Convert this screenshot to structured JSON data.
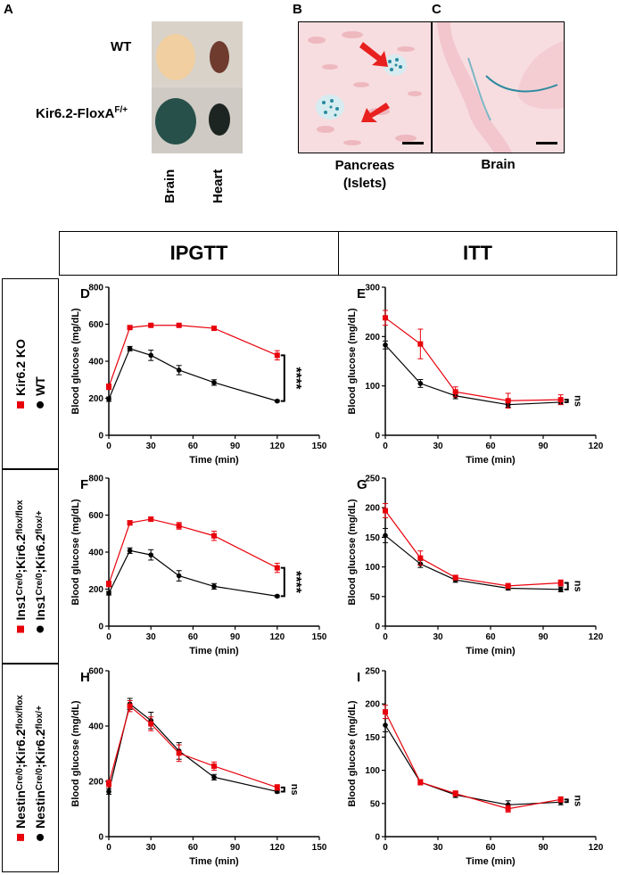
{
  "figure": {
    "panel_letters": {
      "A": "A",
      "B": "B",
      "C": "C"
    },
    "photo_labels": {
      "wt": "WT",
      "mutant_base": "Kir6.2-FloxA",
      "mutant_sup": "F/+",
      "brain": "Brain",
      "heart": "Heart"
    },
    "micro_labels": {
      "pancreas_line1": "Pancreas",
      "pancreas_line2": "(Islets)",
      "brain": "Brain"
    },
    "column_headers": {
      "ipgtt": "IPGTT",
      "itt": "ITT"
    },
    "legends": [
      {
        "black": "WT",
        "red": "Kir6.2 KO"
      },
      {
        "black_base": "Ins1",
        "black_s1": "Cre/0",
        "black_mid": ";Kir6.2",
        "black_s2": "flox/+",
        "red_base": "Ins1",
        "red_s1": "Cre/0",
        "red_mid": ";Kir6.2",
        "red_s2": "flox/flox"
      },
      {
        "black_base": "Nestin",
        "black_s1": "Cre/0",
        "black_mid": ";Kir6.2",
        "black_s2": "flox/+",
        "red_base": "Nestin",
        "red_s1": "Cre/0",
        "red_mid": ";Kir6.2",
        "red_s2": "flox/flox"
      }
    ],
    "colors": {
      "control": "#000000",
      "ko": "#e8000b",
      "tissue_bg": "#f6d9dd",
      "stain": "#2b8a9e",
      "arrow": "#e8201e"
    }
  },
  "chart_data": [
    {
      "id": "D",
      "type": "line",
      "xlabel": "Time (min)",
      "ylabel": "Blood glucose (mg/dL)",
      "xlim": [
        0,
        150
      ],
      "xticks": [
        0,
        30,
        60,
        90,
        120,
        150
      ],
      "ylim": [
        0,
        800
      ],
      "yticks": [
        0,
        200,
        400,
        600,
        800
      ],
      "x": [
        0,
        15,
        30,
        50,
        75,
        120
      ],
      "series": [
        {
          "name": "control",
          "color": "#000000",
          "marker": "circle",
          "values": [
            195,
            468,
            432,
            352,
            285,
            185
          ],
          "errors": [
            12,
            12,
            28,
            25,
            15,
            5
          ]
        },
        {
          "name": "ko",
          "color": "#e8000b",
          "marker": "square",
          "values": [
            262,
            582,
            594,
            594,
            578,
            432
          ],
          "errors": [
            15,
            8,
            6,
            6,
            8,
            25
          ]
        }
      ],
      "annotation": "****"
    },
    {
      "id": "E",
      "type": "line",
      "xlabel": "Time (min)",
      "ylabel": "Blood glucose (mg/dL)",
      "xlim": [
        0,
        120
      ],
      "xticks": [
        0,
        30,
        60,
        90,
        120
      ],
      "ylim": [
        0,
        300
      ],
      "yticks": [
        0,
        100,
        200,
        300
      ],
      "x": [
        0,
        20,
        40,
        70,
        100
      ],
      "series": [
        {
          "name": "control",
          "color": "#000000",
          "marker": "circle",
          "values": [
            183,
            105,
            80,
            62,
            67
          ],
          "errors": [
            8,
            8,
            6,
            5,
            4
          ]
        },
        {
          "name": "ko",
          "color": "#e8000b",
          "marker": "square",
          "values": [
            238,
            185,
            88,
            70,
            72
          ],
          "errors": [
            15,
            30,
            10,
            15,
            10
          ]
        }
      ],
      "annotation": "ns"
    },
    {
      "id": "F",
      "type": "line",
      "xlabel": "Time (min)",
      "ylabel": "Blood glucose (mg/dL)",
      "xlim": [
        0,
        150
      ],
      "xticks": [
        0,
        30,
        60,
        90,
        120,
        150
      ],
      "ylim": [
        0,
        800
      ],
      "yticks": [
        0,
        200,
        400,
        600,
        800
      ],
      "x": [
        0,
        15,
        30,
        50,
        75,
        120
      ],
      "series": [
        {
          "name": "control",
          "color": "#000000",
          "marker": "circle",
          "values": [
            178,
            408,
            385,
            272,
            215,
            162
          ],
          "errors": [
            10,
            15,
            28,
            28,
            15,
            5
          ]
        },
        {
          "name": "ko",
          "color": "#e8000b",
          "marker": "square",
          "values": [
            228,
            558,
            578,
            542,
            488,
            315
          ],
          "errors": [
            15,
            12,
            12,
            18,
            25,
            25
          ]
        }
      ],
      "annotation": "****"
    },
    {
      "id": "G",
      "type": "line",
      "xlabel": "Time (min)",
      "ylabel": "Blood glucose (mg/dL)",
      "xlim": [
        0,
        120
      ],
      "xticks": [
        0,
        30,
        60,
        90,
        120
      ],
      "ylim": [
        0,
        250
      ],
      "yticks": [
        0,
        50,
        100,
        150,
        200,
        250
      ],
      "x": [
        0,
        20,
        40,
        70,
        100
      ],
      "series": [
        {
          "name": "control",
          "color": "#000000",
          "marker": "circle",
          "values": [
            153,
            105,
            78,
            64,
            62
          ],
          "errors": [
            12,
            6,
            4,
            3,
            4
          ]
        },
        {
          "name": "ko",
          "color": "#e8000b",
          "marker": "square",
          "values": [
            195,
            115,
            82,
            68,
            73
          ],
          "errors": [
            12,
            12,
            4,
            4,
            5
          ]
        }
      ],
      "annotation": "ns"
    },
    {
      "id": "H",
      "type": "line",
      "xlabel": "Time (min)",
      "ylabel": "Blood glucose (mg/dL)",
      "xlim": [
        0,
        150
      ],
      "xticks": [
        0,
        30,
        60,
        90,
        120,
        150
      ],
      "ylim": [
        0,
        600
      ],
      "yticks": [
        0,
        200,
        400,
        600
      ],
      "x": [
        0,
        15,
        30,
        50,
        75,
        120
      ],
      "series": [
        {
          "name": "control",
          "color": "#000000",
          "marker": "circle",
          "values": [
            163,
            480,
            420,
            310,
            215,
            163
          ],
          "errors": [
            10,
            20,
            30,
            30,
            10,
            5
          ]
        },
        {
          "name": "ko",
          "color": "#e8000b",
          "marker": "square",
          "values": [
            192,
            472,
            408,
            302,
            255,
            178
          ],
          "errors": [
            12,
            20,
            25,
            30,
            15,
            10
          ]
        }
      ],
      "annotation": "ns"
    },
    {
      "id": "I",
      "type": "line",
      "xlabel": "Time (min)",
      "ylabel": "Blood glucose (mg/dL)",
      "xlim": [
        0,
        120
      ],
      "xticks": [
        0,
        30,
        60,
        90,
        120
      ],
      "ylim": [
        0,
        250
      ],
      "yticks": [
        0,
        50,
        100,
        150,
        200,
        250
      ],
      "x": [
        0,
        20,
        40,
        70,
        100
      ],
      "series": [
        {
          "name": "control",
          "color": "#000000",
          "marker": "circle",
          "values": [
            168,
            82,
            63,
            48,
            52
          ],
          "errors": [
            10,
            4,
            4,
            6,
            4
          ]
        },
        {
          "name": "ko",
          "color": "#e8000b",
          "marker": "square",
          "values": [
            188,
            82,
            65,
            42,
            56
          ],
          "errors": [
            10,
            4,
            4,
            5,
            4
          ]
        }
      ],
      "annotation": "ns"
    }
  ]
}
